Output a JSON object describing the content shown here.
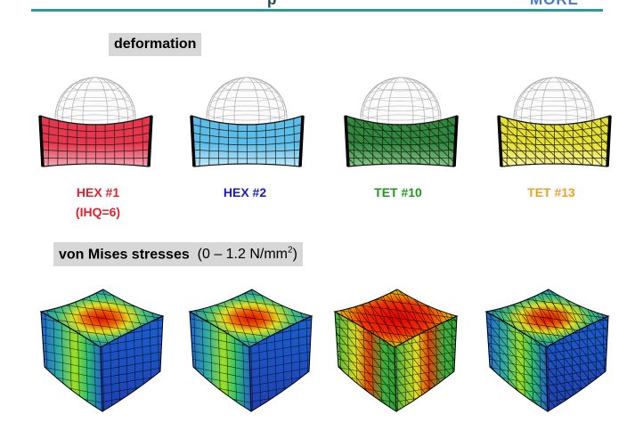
{
  "header": {
    "title_fragment": "p",
    "right_fragment": "MORE"
  },
  "deformation_section": {
    "label": "deformation",
    "models": [
      {
        "caption": "HEX #1",
        "sub_caption": "(IHQ=6)",
        "caption_color": "#e0202a",
        "block_color": "#e8364c",
        "block_light": "#f3a9b6",
        "mesh": "hex"
      },
      {
        "caption": "HEX #2",
        "sub_caption": "",
        "caption_color": "#1a1ad0",
        "block_color": "#5bbde8",
        "block_light": "#c4e9f8",
        "mesh": "hex"
      },
      {
        "caption": "TET #10",
        "sub_caption": "",
        "caption_color": "#1f9a1f",
        "block_color": "#2f8a3c",
        "block_light": "#8ac98a",
        "mesh": "tet"
      },
      {
        "caption": "TET #13",
        "sub_caption": "",
        "caption_color": "#f0a020",
        "block_color": "#e6e030",
        "block_light": "#f7f4a0",
        "mesh": "tet"
      }
    ]
  },
  "stress_section": {
    "label": "von Mises stresses",
    "range_text": "(0 – 1.2 N/mm",
    "range_sup": "2",
    "range_close": ")",
    "models": [
      {
        "mesh": "hex"
      },
      {
        "mesh": "hex"
      },
      {
        "mesh": "tet"
      },
      {
        "mesh": "tet"
      }
    ]
  }
}
